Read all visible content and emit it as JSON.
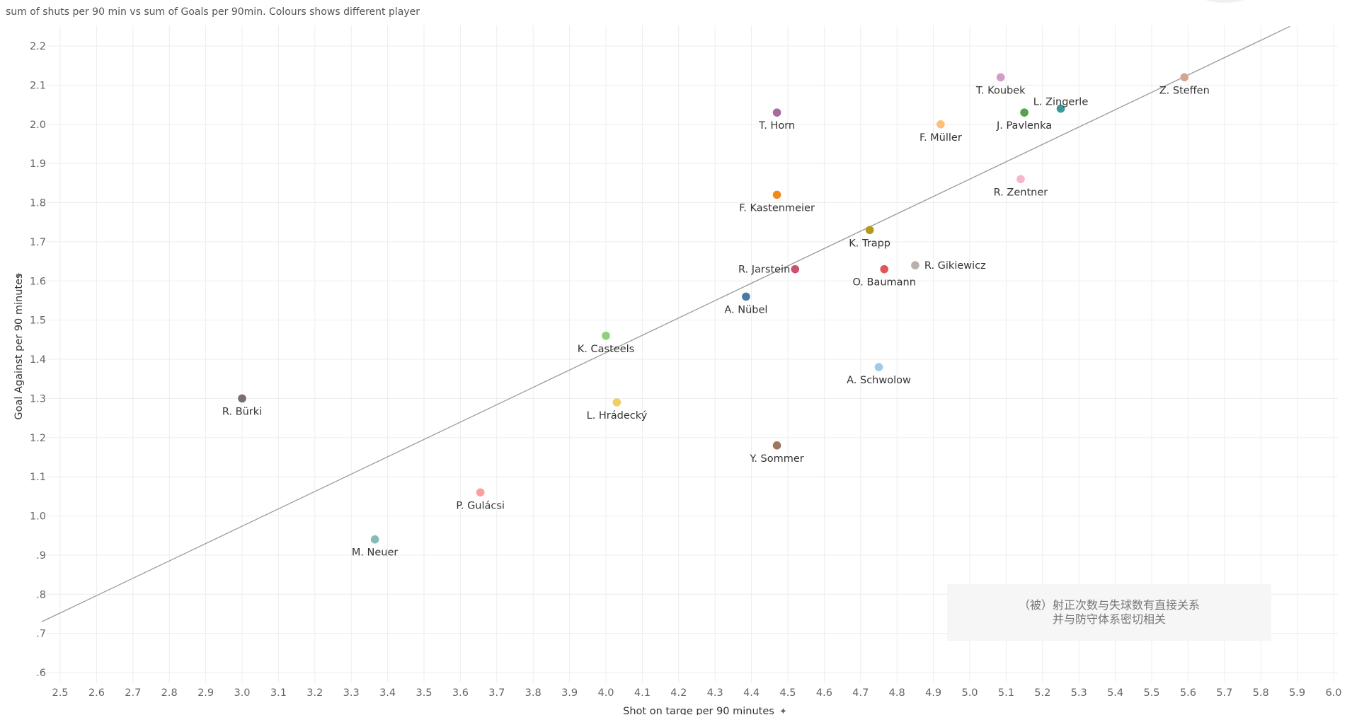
{
  "chart_data": {
    "type": "scatter",
    "title": "sum of shuts per 90 min vs sum of Goals per 90min.  Colours shows different player",
    "xlabel": "Shot on targe per 90 minutes",
    "ylabel": "Goal Against per 90 minutes",
    "xlim": [
      2.45,
      6.0
    ],
    "ylim": [
      0.55,
      2.25
    ],
    "x_ticks": [
      "2.5",
      "2.6",
      "2.7",
      "2.8",
      "2.9",
      "3.0",
      "3.1",
      "3.2",
      "3.3",
      "3.4",
      "3.5",
      "3.6",
      "3.7",
      "3.8",
      "3.9",
      "4.0",
      "4.1",
      "4.2",
      "4.3",
      "4.4",
      "4.5",
      "4.6",
      "4.7",
      "4.8",
      "4.9",
      "5.0",
      "5.1",
      "5.2",
      "5.3",
      "5.4",
      "5.5",
      "5.6",
      "5.7",
      "5.8",
      "5.9",
      "6.0"
    ],
    "y_ticks": [
      ".6",
      ".7",
      ".8",
      ".9",
      "1.0",
      "1.1",
      "1.2",
      "1.3",
      "1.4",
      "1.5",
      "1.6",
      "1.7",
      "1.8",
      "1.9",
      "2.0",
      "2.1",
      "2.2"
    ],
    "trend_line": {
      "x": [
        2.45,
        5.88
      ],
      "y": [
        0.73,
        2.25
      ]
    },
    "points": [
      {
        "name": "T. Koubek",
        "x": 5.085,
        "y": 2.12,
        "color": "#d49ac9",
        "label_pos": "below"
      },
      {
        "name": "Z. Steffen",
        "x": 5.59,
        "y": 2.12,
        "color": "#d4a68f",
        "label_pos": "below"
      },
      {
        "name": "L. Zingerle",
        "x": 5.25,
        "y": 2.04,
        "color": "#3a9a9a",
        "label_pos": "above"
      },
      {
        "name": "J. Pavlenka",
        "x": 5.15,
        "y": 2.03,
        "color": "#54a24b",
        "label_pos": "below"
      },
      {
        "name": "T. Horn",
        "x": 4.47,
        "y": 2.03,
        "color": "#a56aa3",
        "label_pos": "below"
      },
      {
        "name": "F. Müller",
        "x": 4.92,
        "y": 2.0,
        "color": "#ffbf79",
        "label_pos": "below"
      },
      {
        "name": "R. Zentner",
        "x": 5.14,
        "y": 1.86,
        "color": "#f7b6cd",
        "label_pos": "below"
      },
      {
        "name": "F. Kastenmeier",
        "x": 4.47,
        "y": 1.82,
        "color": "#ef8a1a",
        "label_pos": "below"
      },
      {
        "name": "K. Trapp",
        "x": 4.725,
        "y": 1.73,
        "color": "#b39a1a",
        "label_pos": "below"
      },
      {
        "name": "R. Gikiewicz",
        "x": 4.85,
        "y": 1.64,
        "color": "#bab0ac",
        "label_pos": "right"
      },
      {
        "name": "R. Jarstein",
        "x": 4.52,
        "y": 1.63,
        "color": "#c9536b",
        "label_pos": "left"
      },
      {
        "name": "O. Baumann",
        "x": 4.765,
        "y": 1.63,
        "color": "#e15759",
        "label_pos": "below"
      },
      {
        "name": "A. Nübel",
        "x": 4.385,
        "y": 1.56,
        "color": "#4e79a7",
        "label_pos": "below"
      },
      {
        "name": "K. Casteels",
        "x": 4.0,
        "y": 1.46,
        "color": "#8cd17d",
        "label_pos": "below"
      },
      {
        "name": "A. Schwolow",
        "x": 4.75,
        "y": 1.38,
        "color": "#a0cbe8",
        "label_pos": "below"
      },
      {
        "name": "R. Bürki",
        "x": 3.0,
        "y": 1.3,
        "color": "#79706e",
        "label_pos": "below"
      },
      {
        "name": "L. Hrádecký",
        "x": 4.03,
        "y": 1.29,
        "color": "#f1ce63",
        "label_pos": "below"
      },
      {
        "name": "Y. Sommer",
        "x": 4.47,
        "y": 1.18,
        "color": "#9d7660",
        "label_pos": "below"
      },
      {
        "name": "P. Gulácsi",
        "x": 3.655,
        "y": 1.06,
        "color": "#ff9d9a",
        "label_pos": "below"
      },
      {
        "name": "M. Neuer",
        "x": 3.365,
        "y": 0.94,
        "color": "#86bcb6",
        "label_pos": "below"
      }
    ]
  },
  "annotation": {
    "line1": "（被）射正次数与失球数有直接关系",
    "line2": "并与防守体系密切相关"
  }
}
